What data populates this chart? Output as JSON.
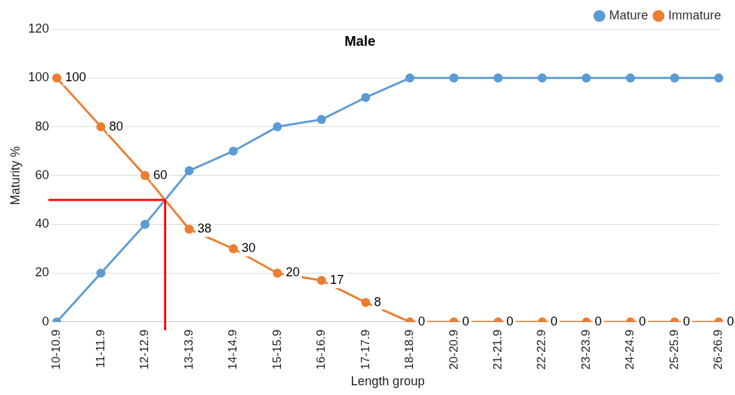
{
  "chart_data": {
    "type": "line",
    "title": "Male",
    "xlabel": "Length group",
    "ylabel": "Maturity %",
    "categories": [
      "10-10.9",
      "11-11.9",
      "12-12.9",
      "13-13.9",
      "14-14.9",
      "15-15.9",
      "16-16.9",
      "17-17.9",
      "18-18.9",
      "20-20.9",
      "21-21.9",
      "22-22.9",
      "23-23.9",
      "24-24.9",
      "25-25.9",
      "26-26.9"
    ],
    "series": [
      {
        "name": "Mature",
        "color": "#5b9bd5",
        "values": [
          0,
          20,
          40,
          62,
          70,
          80,
          83,
          92,
          100,
          100,
          100,
          100,
          100,
          100,
          100,
          100
        ]
      },
      {
        "name": "Immature",
        "color": "#ed7d31",
        "values": [
          100,
          80,
          60,
          38,
          30,
          20,
          17,
          8,
          0,
          0,
          0,
          0,
          0,
          0,
          0,
          0
        ],
        "value_labels": [
          "100",
          "80",
          "60",
          "38",
          "30",
          "20",
          "17",
          "8",
          "0",
          "0",
          "0",
          "0",
          "0",
          "0",
          "0",
          "0"
        ]
      }
    ],
    "ylim": [
      0,
      120
    ],
    "yticks": [
      0,
      20,
      40,
      60,
      80,
      100,
      120
    ],
    "grid": "y",
    "legend": "top right",
    "marker": "circle",
    "line_style": "solid",
    "ref_lines": [
      {
        "axis": "y",
        "value": 50,
        "color": "#ff0000"
      }
    ]
  }
}
